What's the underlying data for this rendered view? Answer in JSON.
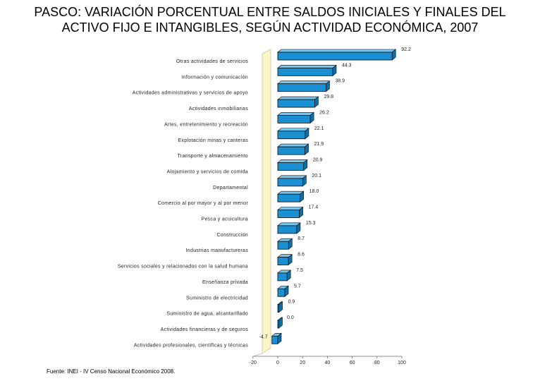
{
  "title": "PASCO: VARIACIÓN PORCENTUAL ENTRE SALDOS INICIALES Y FINALES DEL ACTIVO FIJO E INTANGIBLES, SEGÚN ACTIVIDAD ECONÓMICA, 2007",
  "source": "Fuente: INEI - IV Censo Nacional Económico 2008.",
  "colors": {
    "bar_fill": "#1a8fd1",
    "bar_top": "#7cc6ee",
    "bar_outline": "#0a0a0a",
    "wall": "#fbf6c9"
  },
  "chart_data": {
    "type": "bar",
    "orientation": "horizontal",
    "title": "PASCO: VARIACIÓN PORCENTUAL ENTRE SALDOS INICIALES Y FINALES DEL ACTIVO FIJO E INTANGIBLES, SEGÚN ACTIVIDAD ECONÓMICA, 2007",
    "categories": [
      "Otras actividades de servicios",
      "Información y comunicación",
      "Actividades administrativas y servicios de apoyo",
      "Actividades inmobiliarias",
      "Artes, entretenimiento y recreación",
      "Explotación minas y canteras",
      "Transporte y almacenamiento",
      "Alojamiento y servicios de comida",
      "Departamental",
      "Comercio al por mayor y al por menor",
      "Pesca y acuicultura",
      "Construcción",
      "Industrias manufactureras",
      "Servicios sociales y relacionados con la salud humana",
      "Enseñanza privada",
      "Suministro de electricidad",
      "Suministro de agua, alcantarillado",
      "Actividades financieras y de seguros",
      "Actividades profesionales, científicas y técnicas"
    ],
    "values": [
      92.2,
      44.3,
      38.9,
      29.8,
      26.2,
      22.1,
      21.9,
      20.9,
      20.1,
      18.0,
      17.4,
      15.3,
      8.7,
      8.6,
      7.5,
      5.7,
      0.9,
      0.0,
      -4.7
    ],
    "value_labels": [
      "92.2",
      "44.3",
      "38.9",
      "29.8",
      "26.2",
      "22.1",
      "21.9",
      "20.9",
      "20.1",
      "18.0",
      "17.4",
      "15.3",
      "8.7",
      "8.6",
      "7.5",
      "5.7",
      "0.9",
      "0.0",
      "-4.7"
    ],
    "xticks": [
      -20,
      0,
      20,
      40,
      60,
      80,
      100
    ],
    "xlim": [
      -20,
      100
    ],
    "xlabel": "",
    "ylabel": "",
    "grid": false,
    "legend": "none"
  }
}
